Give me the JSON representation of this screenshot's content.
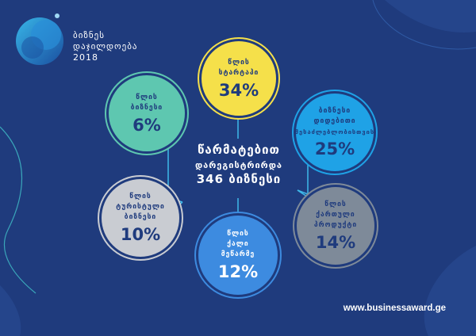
{
  "logo": {
    "line1": "ბიზნეს",
    "line2": "დაჯილდოება",
    "year": "2018"
  },
  "center": {
    "line1": "წარმატებით",
    "line2": "დარეგისტრირდა",
    "line3": "346 ბიზნესი"
  },
  "circles": [
    {
      "key": "startup",
      "lines": [
        "წლის",
        "სტარტაპი"
      ],
      "percent": "34%",
      "color": "#f5e04a",
      "text_color": "#1f3b7d"
    },
    {
      "key": "business",
      "lines": [
        "წლის",
        "ბიზნესი"
      ],
      "percent": "6%",
      "color": "#5ec7b0",
      "text_color": "#1f3b7d"
    },
    {
      "key": "large_business",
      "lines": [
        "ბიზნესი",
        "დიდებითი",
        "შესაძლებლობისთვის"
      ],
      "percent": "25%",
      "color": "#1fa2e6",
      "text_color": "#1f3b7d"
    },
    {
      "key": "tourism",
      "lines": [
        "წლის",
        "ტურისტული",
        "ბიზნესი"
      ],
      "percent": "10%",
      "color": "#c9ccd2",
      "text_color": "#1f3b7d"
    },
    {
      "key": "georgian_product",
      "lines": [
        "წლის",
        "ქართული",
        "პროდუქტი"
      ],
      "percent": "14%",
      "color": "#7e8a99",
      "text_color": "#1f3b7d"
    },
    {
      "key": "woman_entrepreneur",
      "lines": [
        "წლის",
        "ქალი",
        "მეწარმე"
      ],
      "percent": "12%",
      "color": "#3d8be0",
      "text_color": "#ffffff"
    }
  ],
  "footer": {
    "url": "www.businessaward.ge"
  }
}
